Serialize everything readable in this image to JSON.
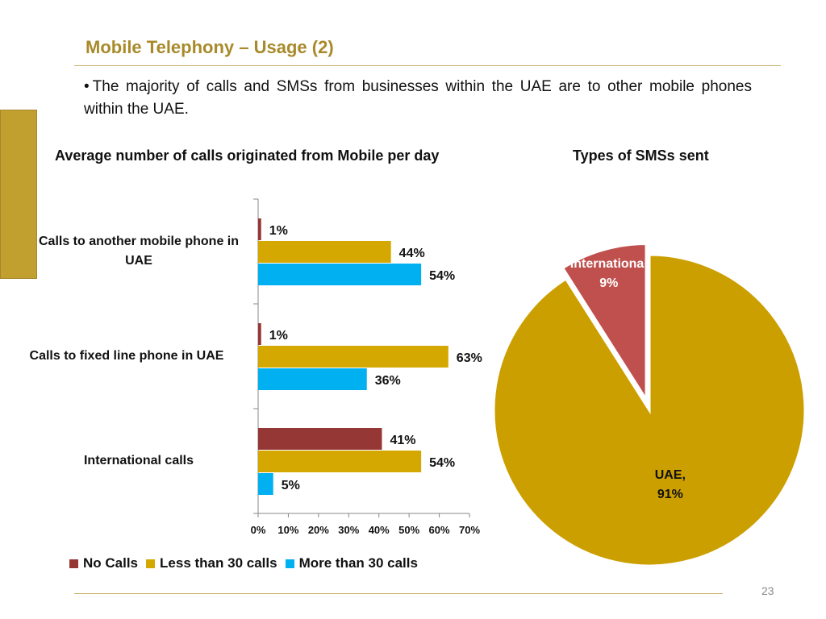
{
  "slide": {
    "title": "Mobile Telephony – Usage (2)",
    "bullet_marker": "•",
    "bullet": "The majority of calls and SMSs from businesses within the UAE are to other mobile phones within the UAE.",
    "page_number": "23"
  },
  "colors": {
    "no_calls": "#953735",
    "less_than_30": "#d4a800",
    "more_than_30": "#00b0f0",
    "international": "#c0504d",
    "uae": "#cc9f00",
    "title": "#a88a2a"
  },
  "chart_data": [
    {
      "type": "bar",
      "orientation": "horizontal",
      "title": "Average number of calls originated from Mobile per day",
      "categories": [
        "Calls to another mobile phone in UAE",
        "Calls to fixed line phone in UAE",
        "International calls"
      ],
      "series": [
        {
          "name": "No Calls",
          "values": [
            1,
            1,
            41
          ]
        },
        {
          "name": "Less than 30 calls",
          "values": [
            44,
            63,
            54
          ]
        },
        {
          "name": "More than 30 calls",
          "values": [
            54,
            36,
            5
          ]
        }
      ],
      "data_labels": [
        [
          "1%",
          "1%",
          "41%"
        ],
        [
          "44%",
          "63%",
          "54%"
        ],
        [
          "54%",
          "36%",
          "5%"
        ]
      ],
      "xlim": [
        0,
        70
      ],
      "xticks": [
        "0%",
        "10%",
        "20%",
        "30%",
        "40%",
        "50%",
        "60%",
        "70%"
      ],
      "grid": false,
      "legend": "bottom"
    },
    {
      "type": "pie",
      "title": "Types of SMSs sent",
      "slices": [
        {
          "label": "International",
          "value": 9,
          "display": "9%",
          "exploded": true
        },
        {
          "label": "UAE,",
          "value": 91,
          "display": "91%",
          "exploded": false
        }
      ]
    }
  ]
}
